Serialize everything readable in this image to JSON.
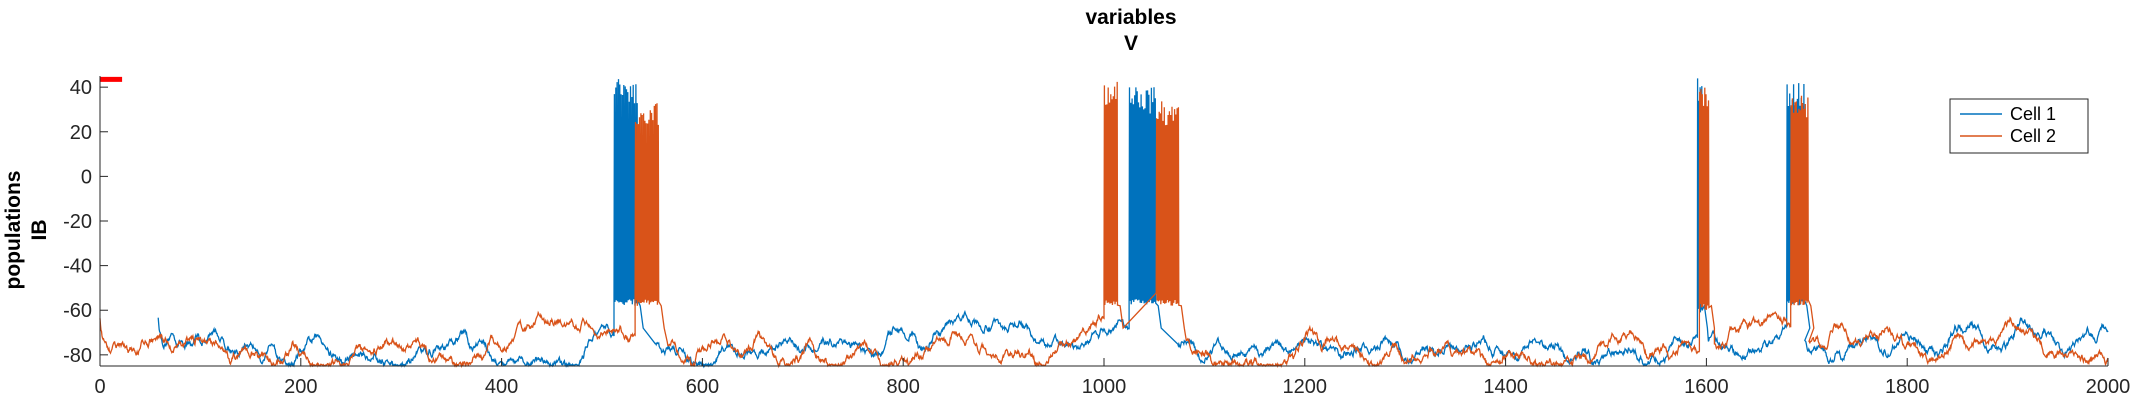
{
  "chart_data": {
    "type": "line",
    "title": [
      "variables",
      "V"
    ],
    "ylabel": [
      "populations",
      "IB"
    ],
    "xlabel": "",
    "xlim": [
      0,
      2000
    ],
    "ylim": [
      -85,
      45
    ],
    "xticks": [
      0,
      200,
      400,
      600,
      800,
      1000,
      1200,
      1400,
      1600,
      1800,
      2000
    ],
    "yticks": [
      -80,
      -60,
      -40,
      -20,
      0,
      20,
      40
    ],
    "grid": false,
    "legend_position": "top-right",
    "series": [
      {
        "name": "Cell 1",
        "color": "#0072BD",
        "baseline_segments": [
          {
            "start": 58,
            "end": 512,
            "level": -78
          },
          {
            "start": 553,
            "end": 1025,
            "level": -76
          },
          {
            "start": 1073,
            "end": 1591,
            "level": -77
          },
          {
            "start": 1602,
            "end": 1680,
            "level": -72
          },
          {
            "start": 1698,
            "end": 2000,
            "level": -75
          }
        ],
        "bursts": [
          {
            "start": 512,
            "end": 536,
            "peak": 44,
            "trough": -55
          },
          {
            "start": 1025,
            "end": 1052,
            "peak": 40,
            "trough": -55
          },
          {
            "start": 1591,
            "end": 1596,
            "peak": 44,
            "trough": -58
          },
          {
            "start": 1680,
            "end": 1698,
            "peak": 42,
            "trough": -55
          }
        ]
      },
      {
        "name": "Cell 2",
        "color": "#D95319",
        "baseline_segments": [
          {
            "start": 0,
            "end": 533,
            "level": -79
          },
          {
            "start": 565,
            "end": 1000,
            "level": -77
          },
          {
            "start": 1082,
            "end": 1593,
            "level": -78
          },
          {
            "start": 1608,
            "end": 1684,
            "level": -74
          },
          {
            "start": 1702,
            "end": 2000,
            "level": -73
          }
        ],
        "bursts": [
          {
            "start": 533,
            "end": 557,
            "peak": 33,
            "trough": -55
          },
          {
            "start": 1000,
            "end": 1014,
            "peak": 43,
            "trough": -55
          },
          {
            "start": 1052,
            "end": 1075,
            "peak": 34,
            "trough": -55
          },
          {
            "start": 1593,
            "end": 1603,
            "peak": 40,
            "trough": -57
          },
          {
            "start": 1684,
            "end": 1702,
            "peak": 38,
            "trough": -55
          }
        ]
      }
    ],
    "annotations": [
      {
        "type": "marker-bar",
        "color": "#FF0000",
        "x": [
          0,
          22
        ],
        "y": 43.5
      }
    ]
  }
}
